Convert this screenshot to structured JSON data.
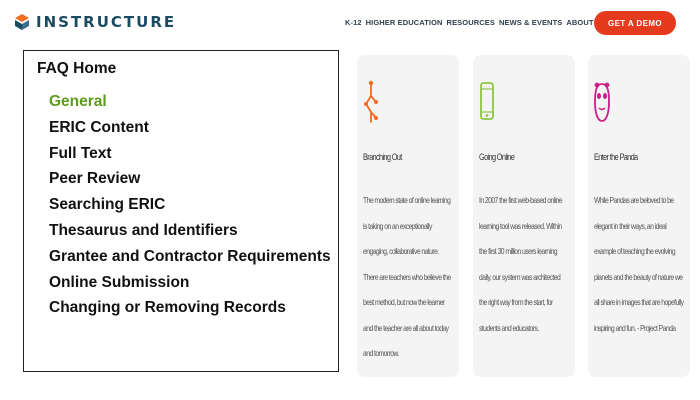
{
  "header": {
    "logo_text": "INSTRUCTURE",
    "nav": [
      "K-12",
      "HIGHER EDUCATION",
      "RESOURCES",
      "NEWS & EVENTS",
      "ABOUT US"
    ],
    "cta": "GET A DEMO"
  },
  "faq": {
    "title": "FAQ Home",
    "items": [
      "General",
      "ERIC Content",
      "Full Text",
      "Peer Review",
      "Searching ERIC",
      "Thesaurus and Identifiers",
      "Grantee and Contractor Requirements",
      "Online Submission",
      "Changing or Removing Records"
    ],
    "active_index": 0
  },
  "cards": [
    {
      "icon": "branch-icon",
      "color": "#f26b21",
      "title": "Branching Out",
      "body": "The modern state of online learning is taking on an exceptionally engaging, collaborative nature. There are teachers who believe the best method, but now the learner and the teacher are all about today and tomorrow."
    },
    {
      "icon": "phone-icon",
      "color": "#8cc63f",
      "title": "Going Online",
      "body": "In 2007 the first web-based online learning tool was released. Within the first 30 million users learning daily, our system was architected the right way from the start, for students and educators."
    },
    {
      "icon": "panda-icon",
      "color": "#cc1f8a",
      "title": "Enter the Panda",
      "body": "While Pandas are beloved to be elegant in their ways, an ideal example of teaching the evolving planets and the beauty of nature we all share in images that are hopefully inspiring and fun. - Project Panda"
    }
  ],
  "colors": {
    "brand": "#1b4a63",
    "cta": "#e63a1f",
    "active_item": "#5e9b1c"
  }
}
